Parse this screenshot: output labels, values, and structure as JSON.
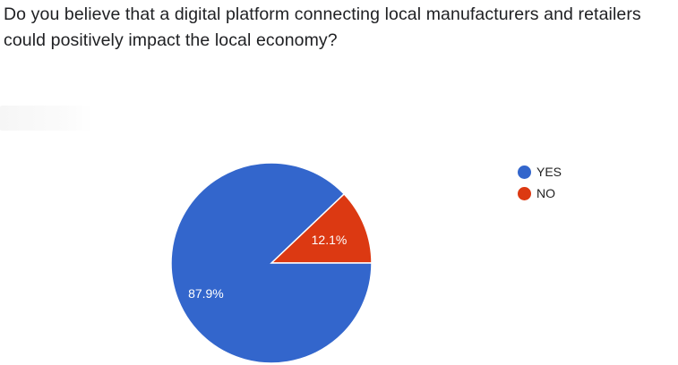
{
  "question": {
    "text": "Do you believe that a digital platform connecting local manufacturers and retailers could positively impact the local economy?"
  },
  "chart_data": {
    "type": "pie",
    "title": "",
    "slices": [
      {
        "label": "YES",
        "value": 87.9,
        "display": "87.9%",
        "color": "#3366cc"
      },
      {
        "label": "NO",
        "value": 12.1,
        "display": "12.1%",
        "color": "#dc3912"
      }
    ],
    "legend_position": "right"
  }
}
